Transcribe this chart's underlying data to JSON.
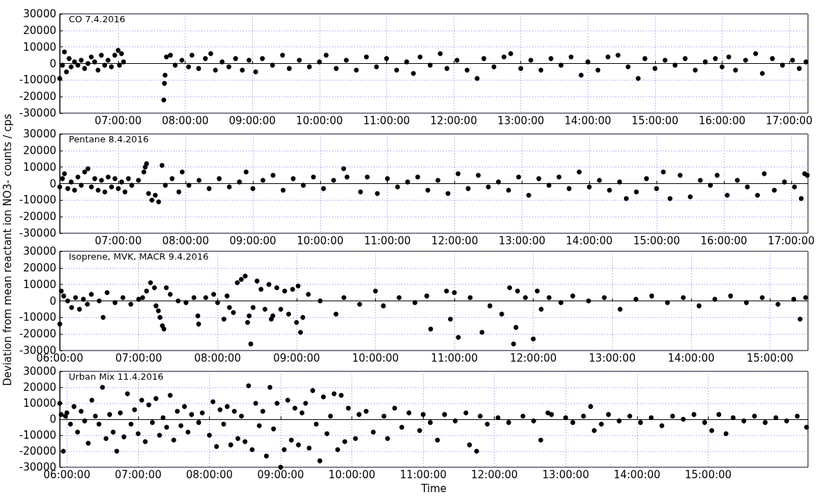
{
  "chart_data": [
    {
      "type": "scatter",
      "title": "CO 7.4.2016",
      "ylabel": "Deviation from mean reactant ion NO3- counts / cps",
      "color": "#000000",
      "marker": "circle",
      "grid": true,
      "xlim": [
        6.13,
        17.28
      ],
      "xticks": [
        {
          "value": 7,
          "label": "07:00:00"
        },
        {
          "value": 8,
          "label": "08:00:00"
        },
        {
          "value": 9,
          "label": "09:00:00"
        },
        {
          "value": 10,
          "label": "10:00:00"
        },
        {
          "value": 11,
          "label": "11:00:00"
        },
        {
          "value": 12,
          "label": "12:00:00"
        },
        {
          "value": 13,
          "label": "13:00:00"
        },
        {
          "value": 14,
          "label": "14:00:00"
        },
        {
          "value": 15,
          "label": "15:00:00"
        },
        {
          "value": 16,
          "label": "16:00:00"
        },
        {
          "value": 17,
          "label": "17:00:00"
        }
      ],
      "ylim": [
        -30000,
        30000
      ],
      "yticks": [
        -30000,
        -20000,
        -10000,
        0,
        10000,
        20000,
        30000
      ],
      "x": [
        6.13,
        6.17,
        6.2,
        6.23,
        6.27,
        6.3,
        6.35,
        6.4,
        6.45,
        6.5,
        6.55,
        6.6,
        6.65,
        6.7,
        6.75,
        6.8,
        6.85,
        6.9,
        6.95,
        7.0,
        7.02,
        7.05,
        7.08,
        7.68,
        7.69,
        7.7,
        7.72,
        7.78,
        7.85,
        7.95,
        8.05,
        8.1,
        8.2,
        8.3,
        8.38,
        8.45,
        8.55,
        8.65,
        8.75,
        8.85,
        8.95,
        9.05,
        9.15,
        9.3,
        9.45,
        9.55,
        9.7,
        9.85,
        10.0,
        10.1,
        10.25,
        10.4,
        10.55,
        10.7,
        10.85,
        11.0,
        11.15,
        11.3,
        11.4,
        11.5,
        11.65,
        11.8,
        11.9,
        12.05,
        12.2,
        12.35,
        12.45,
        12.6,
        12.75,
        12.85,
        13.0,
        13.15,
        13.3,
        13.45,
        13.6,
        13.75,
        13.9,
        14.0,
        14.15,
        14.3,
        14.45,
        14.6,
        14.75,
        14.85,
        15.0,
        15.15,
        15.3,
        15.45,
        15.6,
        15.75,
        15.9,
        16.0,
        16.1,
        16.2,
        16.35,
        16.5,
        16.6,
        16.75,
        16.9,
        17.05,
        17.15,
        17.25
      ],
      "values": [
        -9000,
        -1000,
        7000,
        -5000,
        3000,
        -2000,
        1000,
        -1000,
        2000,
        -3000,
        0,
        4000,
        1000,
        -4000,
        5000,
        -1000,
        2000,
        -2000,
        5000,
        8000,
        -1000,
        6000,
        1000,
        -22000,
        -12000,
        -7000,
        4000,
        5000,
        -1000,
        2000,
        -2000,
        5000,
        -3000,
        3000,
        6000,
        -4000,
        1000,
        -2000,
        3000,
        -4000,
        2000,
        -5000,
        3000,
        -1000,
        5000,
        -3000,
        2000,
        -2000,
        1000,
        5000,
        -3000,
        2000,
        -4000,
        4000,
        -2000,
        3000,
        -4000,
        1000,
        -6000,
        4000,
        -1000,
        6000,
        -3000,
        2000,
        -4000,
        -9000,
        3000,
        -2000,
        4000,
        6000,
        -3000,
        2000,
        -4000,
        3000,
        -1000,
        4000,
        -7000,
        1000,
        -4000,
        4000,
        5000,
        -2000,
        -9000,
        3000,
        -3000,
        2000,
        -1000,
        3000,
        -4000,
        1000,
        3000,
        -2000,
        4000,
        -4000,
        2000,
        6000,
        -6000,
        3000,
        -1000,
        2000,
        -3000,
        1000
      ]
    },
    {
      "type": "scatter",
      "title": "Pentane 8.4.2016",
      "color": "#000000",
      "marker": "circle",
      "grid": true,
      "xlim": [
        6.13,
        17.25
      ],
      "xticks": [
        {
          "value": 7,
          "label": "07:00:00"
        },
        {
          "value": 8,
          "label": "08:00:00"
        },
        {
          "value": 9,
          "label": "09:00:00"
        },
        {
          "value": 10,
          "label": "10:00:00"
        },
        {
          "value": 11,
          "label": "11:00:00"
        },
        {
          "value": 12,
          "label": "12:00:00"
        },
        {
          "value": 13,
          "label": "13:00:00"
        },
        {
          "value": 14,
          "label": "14:00:00"
        },
        {
          "value": 15,
          "label": "15:00:00"
        },
        {
          "value": 16,
          "label": "16:00:00"
        },
        {
          "value": 17,
          "label": "17:00:00"
        }
      ],
      "ylim": [
        -30000,
        30000
      ],
      "yticks": [
        -30000,
        -20000,
        -10000,
        0,
        10000,
        20000,
        30000
      ],
      "x": [
        6.13,
        6.17,
        6.2,
        6.25,
        6.3,
        6.35,
        6.4,
        6.45,
        6.5,
        6.55,
        6.6,
        6.65,
        6.7,
        6.75,
        6.8,
        6.85,
        6.9,
        6.95,
        7.0,
        7.05,
        7.1,
        7.15,
        7.2,
        7.3,
        7.38,
        7.4,
        7.42,
        7.45,
        7.5,
        7.55,
        7.6,
        7.65,
        7.7,
        7.8,
        7.9,
        7.95,
        8.05,
        8.2,
        8.35,
        8.5,
        8.65,
        8.8,
        8.9,
        9.0,
        9.15,
        9.3,
        9.45,
        9.6,
        9.75,
        9.9,
        10.05,
        10.2,
        10.35,
        10.4,
        10.6,
        10.7,
        10.85,
        11.0,
        11.15,
        11.3,
        11.45,
        11.6,
        11.75,
        11.9,
        12.05,
        12.2,
        12.35,
        12.5,
        12.65,
        12.8,
        12.95,
        13.1,
        13.25,
        13.4,
        13.55,
        13.7,
        13.85,
        14.0,
        14.15,
        14.3,
        14.45,
        14.55,
        14.7,
        14.85,
        15.0,
        15.1,
        15.2,
        15.35,
        15.5,
        15.65,
        15.8,
        15.9,
        16.05,
        16.2,
        16.35,
        16.5,
        16.6,
        16.75,
        16.9,
        17.05,
        17.15,
        17.2,
        17.24
      ],
      "values": [
        -2000,
        3000,
        6000,
        -3000,
        1000,
        -4000,
        4000,
        -1000,
        7000,
        9000,
        -2000,
        3000,
        -4000,
        2000,
        -5000,
        4000,
        -2000,
        3000,
        -3000,
        1000,
        -5000,
        3000,
        -1000,
        2000,
        7000,
        10000,
        12000,
        -6000,
        -10000,
        -7000,
        -11000,
        11000,
        -1000,
        3000,
        -5000,
        7000,
        -1000,
        2000,
        -3000,
        3000,
        -2000,
        1000,
        7000,
        -3000,
        2000,
        5000,
        -4000,
        3000,
        -1000,
        4000,
        -3000,
        2000,
        9000,
        4000,
        -5000,
        4000,
        -6000,
        3000,
        -2000,
        1000,
        4000,
        -4000,
        2000,
        -6000,
        6000,
        -3000,
        5000,
        -2000,
        1000,
        -4000,
        4000,
        -7000,
        3000,
        -1000,
        4000,
        -3000,
        7000,
        -2000,
        2000,
        -4000,
        1000,
        -9000,
        -5000,
        3000,
        -3000,
        7000,
        -9000,
        5000,
        -8000,
        2000,
        -1000,
        5000,
        -7000,
        2000,
        -2000,
        -7000,
        6000,
        -4000,
        1000,
        -2000,
        -9000,
        6000,
        5000
      ]
    },
    {
      "type": "scatter",
      "title": "Isoprene, MVK, MACR 9.4.2016",
      "color": "#000000",
      "marker": "circle",
      "grid": true,
      "xlim": [
        6.0,
        15.48
      ],
      "xticks": [
        {
          "value": 6,
          "label": "06:00:00"
        },
        {
          "value": 7,
          "label": "07:00:00"
        },
        {
          "value": 8,
          "label": "08:00:00"
        },
        {
          "value": 9,
          "label": "09:00:00"
        },
        {
          "value": 10,
          "label": "10:00:00"
        },
        {
          "value": 11,
          "label": "11:00:00"
        },
        {
          "value": 12,
          "label": "12:00:00"
        },
        {
          "value": 13,
          "label": "13:00:00"
        },
        {
          "value": 14,
          "label": "14:00:00"
        },
        {
          "value": 15,
          "label": "15:00:00"
        }
      ],
      "ylim": [
        -30000,
        30000
      ],
      "yticks": [
        -30000,
        -20000,
        -10000,
        0,
        10000,
        20000,
        30000
      ],
      "x": [
        6.0,
        6.02,
        6.05,
        6.1,
        6.15,
        6.2,
        6.25,
        6.3,
        6.35,
        6.4,
        6.5,
        6.55,
        6.6,
        6.7,
        6.8,
        6.9,
        7.0,
        7.05,
        7.1,
        7.15,
        7.2,
        7.22,
        7.25,
        7.27,
        7.3,
        7.32,
        7.35,
        7.4,
        7.5,
        7.6,
        7.7,
        7.75,
        7.76,
        7.85,
        7.95,
        8.0,
        8.08,
        8.12,
        8.15,
        8.2,
        8.25,
        8.3,
        8.35,
        8.38,
        8.4,
        8.42,
        8.45,
        8.5,
        8.55,
        8.6,
        8.65,
        8.68,
        8.7,
        8.75,
        8.8,
        8.85,
        8.9,
        8.95,
        9.0,
        9.02,
        9.05,
        9.08,
        9.15,
        9.3,
        9.5,
        9.6,
        9.8,
        10.0,
        10.1,
        10.3,
        10.5,
        10.65,
        10.7,
        10.9,
        10.95,
        11.0,
        11.05,
        11.2,
        11.35,
        11.45,
        11.6,
        11.7,
        11.75,
        11.78,
        11.8,
        11.9,
        12.0,
        12.05,
        12.1,
        12.2,
        12.35,
        12.5,
        12.7,
        12.9,
        13.1,
        13.3,
        13.5,
        13.7,
        13.9,
        14.1,
        14.3,
        14.5,
        14.7,
        14.9,
        15.1,
        15.3,
        15.38,
        15.45
      ],
      "values": [
        -14000,
        6000,
        3000,
        0,
        -4000,
        2000,
        -5000,
        1000,
        -2000,
        4000,
        0,
        -10000,
        5000,
        -1000,
        2000,
        -2000,
        1000,
        2000,
        6000,
        11000,
        8000,
        -3000,
        -6000,
        -10000,
        -15000,
        -17000,
        8000,
        4000,
        0,
        -1000,
        2000,
        -9000,
        -14000,
        2000,
        4000,
        -1000,
        -11000,
        3000,
        -4000,
        -7000,
        11000,
        13000,
        15000,
        -13000,
        -9000,
        -26000,
        -4000,
        12000,
        7000,
        -5000,
        10000,
        -11000,
        -9000,
        8000,
        -5000,
        6000,
        -8000,
        7000,
        -13000,
        9000,
        -19000,
        -10000,
        4000,
        0,
        -8000,
        2000,
        -2000,
        6000,
        -3000,
        2000,
        -1000,
        3000,
        -17000,
        6000,
        -11000,
        5000,
        -22000,
        2000,
        -19000,
        -3000,
        -8000,
        8000,
        -26000,
        -16000,
        6000,
        2000,
        -23000,
        6000,
        -5000,
        2000,
        -1000,
        3000,
        0,
        2000,
        -5000,
        1000,
        3000,
        -1000,
        2000,
        -3000,
        1000,
        3000,
        -1000,
        2000,
        -2000,
        1000,
        -11000,
        2000
      ]
    },
    {
      "type": "scatter",
      "title": "Urban Mix 11.4.2016",
      "xlabel": "Time",
      "color": "#000000",
      "marker": "circle",
      "grid": true,
      "xlim": [
        5.9,
        16.4
      ],
      "xticks": [
        {
          "value": 6,
          "label": "06:00:00"
        },
        {
          "value": 7,
          "label": "07:00:00"
        },
        {
          "value": 8,
          "label": "08:00:00"
        },
        {
          "value": 9,
          "label": "09:00:00"
        },
        {
          "value": 10,
          "label": "10:00:00"
        },
        {
          "value": 11,
          "label": "11:00:00"
        },
        {
          "value": 12,
          "label": "12:00:00"
        },
        {
          "value": 13,
          "label": "13:00:00"
        },
        {
          "value": 14,
          "label": "14:00:00"
        },
        {
          "value": 15,
          "label": "15:00:00"
        }
      ],
      "ylim": [
        -30000,
        30000
      ],
      "yticks": [
        -30000,
        -20000,
        -10000,
        0,
        10000,
        20000,
        30000
      ],
      "x": [
        5.9,
        5.92,
        5.95,
        5.98,
        6.0,
        6.05,
        6.1,
        6.15,
        6.2,
        6.25,
        6.3,
        6.35,
        6.4,
        6.45,
        6.5,
        6.55,
        6.6,
        6.65,
        6.7,
        6.75,
        6.8,
        6.85,
        6.9,
        6.95,
        7.0,
        7.05,
        7.1,
        7.15,
        7.2,
        7.25,
        7.3,
        7.35,
        7.4,
        7.45,
        7.5,
        7.55,
        7.6,
        7.65,
        7.7,
        7.75,
        7.85,
        7.9,
        8.0,
        8.05,
        8.1,
        8.15,
        8.2,
        8.25,
        8.3,
        8.35,
        8.4,
        8.45,
        8.5,
        8.55,
        8.6,
        8.65,
        8.7,
        8.75,
        8.8,
        8.85,
        8.9,
        8.95,
        9.0,
        9.05,
        9.1,
        9.15,
        9.2,
        9.25,
        9.3,
        9.35,
        9.4,
        9.45,
        9.5,
        9.55,
        9.6,
        9.65,
        9.7,
        9.75,
        9.8,
        9.85,
        9.9,
        9.95,
        10.05,
        10.1,
        10.2,
        10.3,
        10.45,
        10.5,
        10.6,
        10.7,
        10.8,
        10.95,
        11.0,
        11.1,
        11.2,
        11.3,
        11.45,
        11.6,
        11.65,
        11.75,
        11.8,
        11.9,
        12.05,
        12.2,
        12.4,
        12.55,
        12.65,
        12.75,
        12.8,
        13.0,
        13.1,
        13.25,
        13.35,
        13.4,
        13.5,
        13.6,
        13.75,
        13.9,
        14.05,
        14.2,
        14.35,
        14.5,
        14.65,
        14.8,
        14.95,
        15.05,
        15.15,
        15.25,
        15.35,
        15.5,
        15.65,
        15.8,
        15.95,
        16.1,
        16.25,
        16.38
      ],
      "values": [
        10000,
        3000,
        -20000,
        2000,
        4000,
        -3000,
        8000,
        -8000,
        5000,
        -1000,
        -15000,
        12000,
        2000,
        -3000,
        20000,
        -12000,
        3000,
        -8000,
        -20000,
        4000,
        -11000,
        16000,
        -3000,
        6000,
        -9000,
        12000,
        -14000,
        9000,
        -2000,
        13000,
        -10000,
        1000,
        -5000,
        15000,
        -13000,
        5000,
        -4000,
        8000,
        -8000,
        3000,
        -2000,
        4000,
        -10000,
        11000,
        -17000,
        6000,
        -3000,
        8000,
        -16000,
        5000,
        -12000,
        2000,
        -14000,
        21000,
        -19000,
        10000,
        -4000,
        5000,
        -23000,
        20000,
        -6000,
        10000,
        -30000,
        -19000,
        12000,
        -13000,
        7000,
        -16000,
        4000,
        10000,
        -18000,
        18000,
        -3000,
        -26000,
        14000,
        -9000,
        2000,
        16000,
        -19000,
        15000,
        -14000,
        7000,
        -12000,
        3000,
        5000,
        -8000,
        2000,
        -12000,
        7000,
        -5000,
        4000,
        -7000,
        3000,
        -2000,
        -13000,
        3000,
        -1000,
        4000,
        -16000,
        -20000,
        2000,
        -3000,
        1000,
        -2000,
        2000,
        -1000,
        -13000,
        4000,
        3000,
        1000,
        -2000,
        2000,
        8000,
        -7000,
        -3000,
        3000,
        -1000,
        2000,
        -2000,
        1000,
        -4000,
        2000,
        0,
        3000,
        -2000,
        -7000,
        3000,
        -9000,
        1000,
        -1000,
        2000,
        -2000,
        1000,
        -1000,
        2000,
        -5000
      ]
    }
  ]
}
